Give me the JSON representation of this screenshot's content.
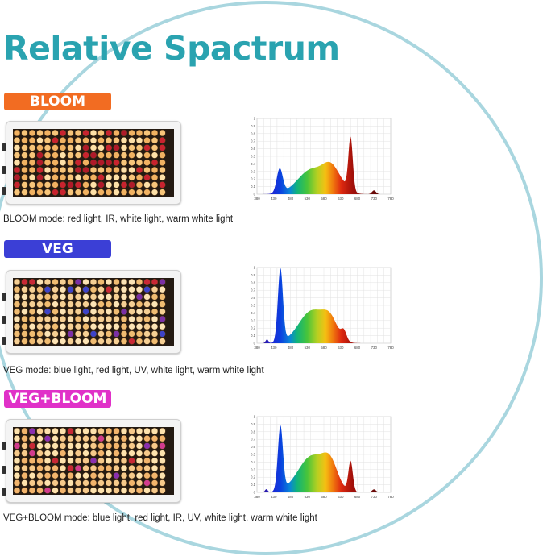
{
  "title": "Relative Spactrum",
  "sections": [
    {
      "badge": "BLOOM",
      "badge_color": "#f26c22",
      "caption": "BLOOM mode: red light, IR, white light, warm white light",
      "profile": "bloom"
    },
    {
      "badge": "VEG",
      "badge_color": "#3b3fd6",
      "caption": "VEG mode: blue light, red light, UV, white light, warm white light",
      "profile": "veg"
    },
    {
      "badge": "VEG+BLOOM",
      "badge_color": "#e031c8",
      "caption": "VEG+BLOOM mode: blue light, red light, IR, UV, white light, warm white light",
      "profile": "vegbloom"
    }
  ],
  "axis": {
    "x_ticks": [
      "380",
      "430",
      "480",
      "530",
      "580",
      "630",
      "680",
      "730",
      "780"
    ],
    "y_ticks": [
      "0",
      "0.1",
      "0.2",
      "0.3",
      "0.4",
      "0.5",
      "0.6",
      "0.7",
      "0.8",
      "0.9",
      "1"
    ]
  },
  "colors": {
    "arc": "#a9d6df",
    "title": "#2aa3b0"
  }
}
